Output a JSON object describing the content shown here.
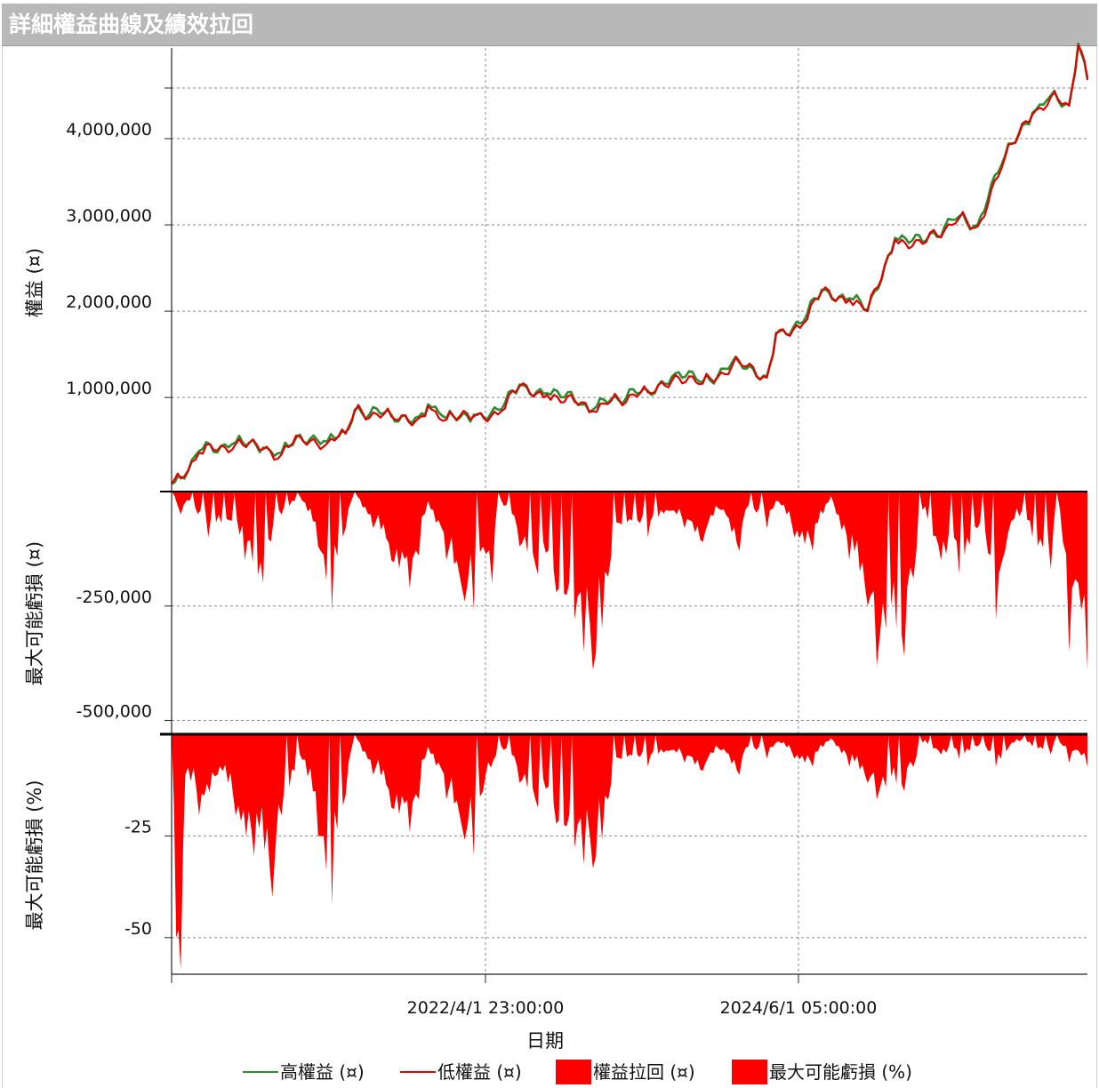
{
  "window": {
    "title": "詳細權益曲線及績效拉回"
  },
  "chart_data": {
    "type": "line",
    "xlabel": "日期",
    "x_ticks": [
      "2022/4/1 23:00:00",
      "2024/6/1 05:00:00"
    ],
    "x_range": [
      "2020/3/15",
      "2026/5/1"
    ],
    "panels": [
      {
        "name": "equity",
        "type": "line",
        "ylabel": "權益 (¤)",
        "ylim": [
          -90000,
          5050000
        ],
        "yticks": [
          1000000,
          2000000,
          3000000,
          4000000
        ],
        "ytick_labels": [
          "1,000,000",
          "2,000,000",
          "3,000,000",
          "4,000,000"
        ],
        "series": [
          {
            "name": "高權益 (¤)",
            "color": "#2e8b2e",
            "values": [
              [
                0,
                0
              ],
              [
                0.01,
                80000
              ],
              [
                0.03,
                380000
              ],
              [
                0.07,
                480000
              ],
              [
                0.1,
                420000
              ],
              [
                0.12,
                360000
              ],
              [
                0.14,
                570000
              ],
              [
                0.17,
                490000
              ],
              [
                0.19,
                600000
              ],
              [
                0.2,
                860000
              ],
              [
                0.24,
                800000
              ],
              [
                0.27,
                780000
              ],
              [
                0.28,
                920000
              ],
              [
                0.3,
                760000
              ],
              [
                0.33,
                800000
              ],
              [
                0.36,
                860000
              ],
              [
                0.38,
                1150000
              ],
              [
                0.41,
                1050000
              ],
              [
                0.44,
                970000
              ],
              [
                0.46,
                860000
              ],
              [
                0.48,
                980000
              ],
              [
                0.52,
                1080000
              ],
              [
                0.55,
                1280000
              ],
              [
                0.58,
                1180000
              ],
              [
                0.62,
                1420000
              ],
              [
                0.65,
                1250000
              ],
              [
                0.66,
                1750000
              ],
              [
                0.69,
                1880000
              ],
              [
                0.71,
                2250000
              ],
              [
                0.74,
                2150000
              ],
              [
                0.76,
                2020000
              ],
              [
                0.79,
                2850000
              ],
              [
                0.82,
                2800000
              ],
              [
                0.86,
                3100000
              ],
              [
                0.88,
                3000000
              ],
              [
                0.91,
                3800000
              ],
              [
                0.94,
                4300000
              ],
              [
                0.96,
                4500000
              ],
              [
                0.98,
                4400000
              ],
              [
                0.99,
                5100000
              ],
              [
                1.0,
                4700000
              ]
            ]
          },
          {
            "name": "低權益 (¤)",
            "color": "#e00000",
            "values": [
              [
                0,
                0
              ],
              [
                0.01,
                60000
              ],
              [
                0.03,
                360000
              ],
              [
                0.07,
                460000
              ],
              [
                0.1,
                400000
              ],
              [
                0.12,
                340000
              ],
              [
                0.14,
                550000
              ],
              [
                0.17,
                470000
              ],
              [
                0.19,
                580000
              ],
              [
                0.2,
                840000
              ],
              [
                0.24,
                780000
              ],
              [
                0.27,
                760000
              ],
              [
                0.28,
                900000
              ],
              [
                0.3,
                740000
              ],
              [
                0.33,
                780000
              ],
              [
                0.36,
                840000
              ],
              [
                0.38,
                1130000
              ],
              [
                0.41,
                1030000
              ],
              [
                0.44,
                950000
              ],
              [
                0.46,
                840000
              ],
              [
                0.48,
                960000
              ],
              [
                0.52,
                1060000
              ],
              [
                0.55,
                1260000
              ],
              [
                0.58,
                1160000
              ],
              [
                0.62,
                1400000
              ],
              [
                0.65,
                1230000
              ],
              [
                0.66,
                1730000
              ],
              [
                0.69,
                1860000
              ],
              [
                0.71,
                2230000
              ],
              [
                0.74,
                2130000
              ],
              [
                0.76,
                2000000
              ],
              [
                0.79,
                2830000
              ],
              [
                0.82,
                2780000
              ],
              [
                0.86,
                3080000
              ],
              [
                0.88,
                2980000
              ],
              [
                0.91,
                3780000
              ],
              [
                0.94,
                4280000
              ],
              [
                0.96,
                4480000
              ],
              [
                0.98,
                4380000
              ],
              [
                0.99,
                5080000
              ],
              [
                1.0,
                4680000
              ]
            ]
          }
        ]
      },
      {
        "name": "drawdown",
        "type": "area",
        "ylabel": "最大可能虧損 (¤)",
        "ylim": [
          -530000,
          0
        ],
        "yticks": [
          -250000,
          -500000
        ],
        "ytick_labels": [
          "-250,000",
          "-500,000"
        ],
        "series": [
          {
            "name": "權益拉回 (¤)",
            "color": "#ff0000",
            "values": [
              [
                0,
                0
              ],
              [
                0.01,
                -50000
              ],
              [
                0.02,
                -20000
              ],
              [
                0.04,
                -100000
              ],
              [
                0.06,
                -60000
              ],
              [
                0.08,
                -150000
              ],
              [
                0.1,
                -200000
              ],
              [
                0.12,
                -50000
              ],
              [
                0.14,
                -10000
              ],
              [
                0.16,
                -120000
              ],
              [
                0.175,
                -260000
              ],
              [
                0.19,
                -80000
              ],
              [
                0.2,
                0
              ],
              [
                0.22,
                -80000
              ],
              [
                0.24,
                -150000
              ],
              [
                0.26,
                -210000
              ],
              [
                0.27,
                -140000
              ],
              [
                0.28,
                -20000
              ],
              [
                0.3,
                -150000
              ],
              [
                0.32,
                -240000
              ],
              [
                0.33,
                -260000
              ],
              [
                0.34,
                -120000
              ],
              [
                0.35,
                -200000
              ],
              [
                0.36,
                -20000
              ],
              [
                0.38,
                -120000
              ],
              [
                0.4,
                -180000
              ],
              [
                0.42,
                -220000
              ],
              [
                0.44,
                -280000
              ],
              [
                0.45,
                -350000
              ],
              [
                0.46,
                -390000
              ],
              [
                0.47,
                -300000
              ],
              [
                0.48,
                -140000
              ],
              [
                0.5,
                -60000
              ],
              [
                0.52,
                -100000
              ],
              [
                0.54,
                -40000
              ],
              [
                0.56,
                -80000
              ],
              [
                0.58,
                -110000
              ],
              [
                0.6,
                -40000
              ],
              [
                0.62,
                -130000
              ],
              [
                0.63,
                -30000
              ],
              [
                0.65,
                -80000
              ],
              [
                0.66,
                -20000
              ],
              [
                0.68,
                -100000
              ],
              [
                0.7,
                -130000
              ],
              [
                0.72,
                -10000
              ],
              [
                0.74,
                -150000
              ],
              [
                0.76,
                -250000
              ],
              [
                0.77,
                -380000
              ],
              [
                0.78,
                -300000
              ],
              [
                0.8,
                -360000
              ],
              [
                0.81,
                -190000
              ],
              [
                0.82,
                -40000
              ],
              [
                0.84,
                -150000
              ],
              [
                0.86,
                -180000
              ],
              [
                0.88,
                -80000
              ],
              [
                0.9,
                -280000
              ],
              [
                0.91,
                -130000
              ],
              [
                0.92,
                -60000
              ],
              [
                0.94,
                -100000
              ],
              [
                0.96,
                -170000
              ],
              [
                0.97,
                -40000
              ],
              [
                0.98,
                -350000
              ],
              [
                0.99,
                -200000
              ],
              [
                1.0,
                -390000
              ]
            ]
          }
        ]
      },
      {
        "name": "drawdown_pct",
        "type": "area",
        "ylabel": "最大可能虧損 (%)",
        "ylim": [
          -59,
          0
        ],
        "yticks": [
          -25,
          -50
        ],
        "ytick_labels": [
          "-25",
          "-50"
        ],
        "series": [
          {
            "name": "最大可能虧損 (%)",
            "color": "#ff0000",
            "values": [
              [
                0,
                0
              ],
              [
                0.005,
                -50
              ],
              [
                0.01,
                -58
              ],
              [
                0.015,
                -10
              ],
              [
                0.03,
                -20
              ],
              [
                0.05,
                -10
              ],
              [
                0.07,
                -20
              ],
              [
                0.09,
                -30
              ],
              [
                0.11,
                -40
              ],
              [
                0.12,
                -20
              ],
              [
                0.14,
                -5
              ],
              [
                0.16,
                -25
              ],
              [
                0.175,
                -42
              ],
              [
                0.19,
                -15
              ],
              [
                0.2,
                0
              ],
              [
                0.22,
                -10
              ],
              [
                0.24,
                -18
              ],
              [
                0.26,
                -24
              ],
              [
                0.27,
                -16
              ],
              [
                0.28,
                -3
              ],
              [
                0.3,
                -16
              ],
              [
                0.32,
                -26
              ],
              [
                0.33,
                -30
              ],
              [
                0.34,
                -14
              ],
              [
                0.36,
                -3
              ],
              [
                0.38,
                -12
              ],
              [
                0.4,
                -18
              ],
              [
                0.42,
                -22
              ],
              [
                0.44,
                -28
              ],
              [
                0.45,
                -32
              ],
              [
                0.46,
                -33
              ],
              [
                0.47,
                -26
              ],
              [
                0.48,
                -12
              ],
              [
                0.5,
                -5
              ],
              [
                0.52,
                -8
              ],
              [
                0.54,
                -4
              ],
              [
                0.56,
                -7
              ],
              [
                0.58,
                -9
              ],
              [
                0.6,
                -4
              ],
              [
                0.62,
                -10
              ],
              [
                0.63,
                -3
              ],
              [
                0.65,
                -6
              ],
              [
                0.66,
                -2
              ],
              [
                0.68,
                -6
              ],
              [
                0.7,
                -8
              ],
              [
                0.72,
                -1
              ],
              [
                0.74,
                -8
              ],
              [
                0.76,
                -12
              ],
              [
                0.77,
                -16
              ],
              [
                0.78,
                -13
              ],
              [
                0.8,
                -14
              ],
              [
                0.81,
                -8
              ],
              [
                0.82,
                -2
              ],
              [
                0.84,
                -5
              ],
              [
                0.86,
                -6
              ],
              [
                0.88,
                -3
              ],
              [
                0.9,
                -8
              ],
              [
                0.92,
                -2
              ],
              [
                0.94,
                -3
              ],
              [
                0.96,
                -5
              ],
              [
                0.97,
                -2
              ],
              [
                0.98,
                -7
              ],
              [
                0.99,
                -4
              ],
              [
                1.0,
                -8
              ]
            ]
          }
        ]
      }
    ],
    "legend": {
      "placement": "bottom",
      "entries": [
        {
          "label": "高權益 (¤)",
          "kind": "line",
          "color": "#2e8b2e"
        },
        {
          "label": "低權益 (¤)",
          "kind": "line",
          "color": "#e00000"
        },
        {
          "label": "權益拉回 (¤)",
          "kind": "box",
          "color": "#ff0000"
        },
        {
          "label": "最大可能虧損 (%)",
          "kind": "box",
          "color": "#ff0000"
        }
      ]
    },
    "grid": true
  }
}
